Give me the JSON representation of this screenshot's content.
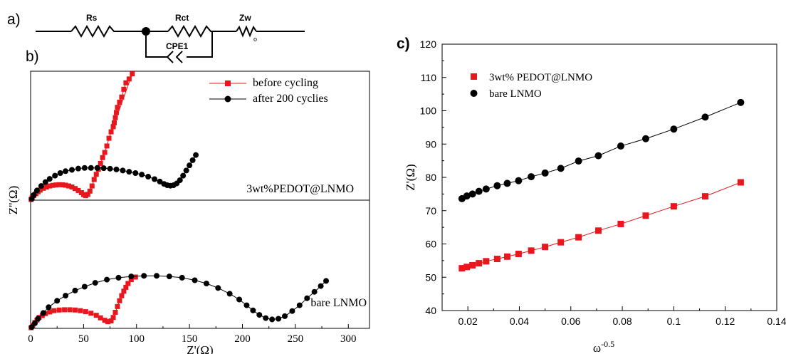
{
  "panel_labels": {
    "a": "a)",
    "b": "b)",
    "c": "c)"
  },
  "circuit": {
    "labels": [
      "Rs",
      "Rct",
      "Zw",
      "CPE1"
    ]
  },
  "colors": {
    "series_red": "#e8161d",
    "series_black": "#000000",
    "line_red": "#e8161d",
    "line_black": "#000000"
  },
  "chart_data": [
    {
      "id": "b",
      "type": "scatter",
      "subtype": "nyquist-line-marker",
      "xlabel": "Z'(Ω)",
      "ylabel": "Z''(Ω)",
      "xlim": [
        0,
        320
      ],
      "xticks": [
        0,
        50,
        100,
        150,
        200,
        250,
        300
      ],
      "legend_position": "top-right",
      "legend": [
        "before cycling",
        "after 200 cyclies"
      ],
      "subpanels": [
        {
          "id": "b-top",
          "annotation": "3wt%PEDOT@LNMO",
          "ylim": [
            0,
            100
          ],
          "series": [
            {
              "name": "before cycling",
              "marker": "square",
              "color": "#e8161d",
              "points": [
                [
                  0.5,
                  0.5
                ],
                [
                  1.5,
                  2
                ],
                [
                  3,
                  3.5
                ],
                [
                  5,
                  5
                ],
                [
                  7,
                  6.5
                ],
                [
                  9,
                  7.8
                ],
                [
                  12,
                  9.2
                ],
                [
                  15,
                  10.2
                ],
                [
                  18,
                  11
                ],
                [
                  21,
                  11.5
                ],
                [
                  24,
                  11.8
                ],
                [
                  27,
                  12
                ],
                [
                  30,
                  11.9
                ],
                [
                  33,
                  11.6
                ],
                [
                  36,
                  11
                ],
                [
                  39,
                  10.2
                ],
                [
                  42,
                  9
                ],
                [
                  45,
                  7.5
                ],
                [
                  48,
                  5.8
                ],
                [
                  50,
                  4.3
                ],
                [
                  52,
                  3.5
                ],
                [
                  54,
                  4.5
                ],
                [
                  56,
                  7
                ],
                [
                  58,
                  11
                ],
                [
                  60,
                  16
                ],
                [
                  62,
                  20
                ],
                [
                  64,
                  24
                ],
                [
                  66,
                  28.5
                ],
                [
                  68,
                  33
                ],
                [
                  70,
                  37
                ],
                [
                  72,
                  42
                ],
                [
                  74,
                  48
                ],
                [
                  76,
                  53
                ],
                [
                  78,
                  57
                ],
                [
                  79,
                  60
                ],
                [
                  80,
                  64
                ],
                [
                  81,
                  68
                ],
                [
                  82,
                  72
                ],
                [
                  84,
                  76
                ],
                [
                  86,
                  80
                ],
                [
                  88,
                  86
                ],
                [
                  90,
                  91
                ],
                [
                  93,
                  94
                ],
                [
                  96,
                  98
                ],
                [
                  78,
                  57
                ]
              ]
            },
            {
              "name": "after 200 cyclies",
              "marker": "circle",
              "color": "#000000",
              "points": [
                [
                  1,
                  1
                ],
                [
                  3,
                  4
                ],
                [
                  6,
                  7.5
                ],
                [
                  10,
                  11
                ],
                [
                  14,
                  14
                ],
                [
                  18,
                  16.5
                ],
                [
                  23,
                  19
                ],
                [
                  28,
                  21
                ],
                [
                  33,
                  22.5
                ],
                [
                  39,
                  23.5
                ],
                [
                  45,
                  24.5
                ],
                [
                  51,
                  25
                ],
                [
                  57,
                  25
                ],
                [
                  63,
                  25
                ],
                [
                  69,
                  24.8
                ],
                [
                  75,
                  24.4
                ],
                [
                  81,
                  23.8
                ],
                [
                  87,
                  23
                ],
                [
                  93,
                  22
                ],
                [
                  99,
                  21
                ],
                [
                  105,
                  19.8
                ],
                [
                  111,
                  18.2
                ],
                [
                  117,
                  16.3
                ],
                [
                  122,
                  14.4
                ],
                [
                  126,
                  12.6
                ],
                [
                  129,
                  11.6
                ],
                [
                  132,
                  11.2
                ],
                [
                  135,
                  11.6
                ],
                [
                  138,
                  13
                ],
                [
                  141,
                  15.5
                ],
                [
                  144,
                  19
                ],
                [
                  147,
                  23
                ],
                [
                  150,
                  27
                ],
                [
                  153,
                  31
                ],
                [
                  156,
                  35
                ]
              ]
            }
          ]
        },
        {
          "id": "b-bottom",
          "annotation": "bare LNMO",
          "ylim": [
            0,
            100
          ],
          "series": [
            {
              "name": "before cycling",
              "marker": "square",
              "color": "#e8161d",
              "points": [
                [
                  0.5,
                  0.5
                ],
                [
                  2,
                  2.5
                ],
                [
                  4,
                  4.5
                ],
                [
                  6,
                  6.5
                ],
                [
                  8,
                  8.5
                ],
                [
                  11,
                  10
                ],
                [
                  14,
                  11.5
                ],
                [
                  18,
                  12.8
                ],
                [
                  22,
                  13.8
                ],
                [
                  27,
                  14.3
                ],
                [
                  32,
                  14.5
                ],
                [
                  37,
                  14.5
                ],
                [
                  42,
                  14.3
                ],
                [
                  47,
                  13.8
                ],
                [
                  52,
                  13
                ],
                [
                  57,
                  11.8
                ],
                [
                  62,
                  10.2
                ],
                [
                  66,
                  8.2
                ],
                [
                  70,
                  6.3
                ],
                [
                  73,
                  5.2
                ],
                [
                  76,
                  5.8
                ],
                [
                  78,
                  8.5
                ],
                [
                  80,
                  12.5
                ],
                [
                  82,
                  17
                ],
                [
                  84,
                  21.5
                ],
                [
                  86,
                  25.5
                ],
                [
                  88,
                  29
                ],
                [
                  90,
                  32
                ],
                [
                  92,
                  35
                ],
                [
                  95,
                  38
                ],
                [
                  99,
                  40
                ]
              ]
            },
            {
              "name": "after 200 cyclies",
              "marker": "circle",
              "color": "#000000",
              "points": [
                [
                  1,
                  1
                ],
                [
                  4,
                  4
                ],
                [
                  7,
                  7.5
                ],
                [
                  12,
                  12
                ],
                [
                  17,
                  16.5
                ],
                [
                  25,
                  21.5
                ],
                [
                  33,
                  25.5
                ],
                [
                  42,
                  29.5
                ],
                [
                  51,
                  32.5
                ],
                [
                  61,
                  35.5
                ],
                [
                  72,
                  38
                ],
                [
                  83,
                  39.5
                ],
                [
                  95,
                  40.5
                ],
                [
                  107,
                  41
                ],
                [
                  119,
                  41
                ],
                [
                  131,
                  40.5
                ],
                [
                  143,
                  39.5
                ],
                [
                  155,
                  37.5
                ],
                [
                  166,
                  35
                ],
                [
                  177,
                  31.5
                ],
                [
                  188,
                  27
                ],
                [
                  197,
                  22.5
                ],
                [
                  204,
                  18
                ],
                [
                  210,
                  14
                ],
                [
                  216,
                  10.5
                ],
                [
                  222,
                  8
                ],
                [
                  228,
                  7
                ],
                [
                  234,
                  7.5
                ],
                [
                  240,
                  9.5
                ],
                [
                  247,
                  13.5
                ],
                [
                  254,
                  18
                ],
                [
                  261,
                  23.5
                ],
                [
                  268,
                  28.5
                ],
                [
                  274,
                  33
                ],
                [
                  279,
                  37
                ]
              ]
            }
          ]
        }
      ]
    },
    {
      "id": "c",
      "type": "scatter",
      "subtype": "scatter-with-linear-fit",
      "xlabel": "ω-0.5",
      "xlabel_base": "ω",
      "xlabel_sup": "-0.5",
      "ylabel": "Z'(Ω)",
      "xlim": [
        0.01,
        0.14
      ],
      "ylim": [
        40,
        120
      ],
      "xticks": [
        0.02,
        0.04,
        0.06,
        0.08,
        0.1,
        0.12,
        0.14
      ],
      "yticks": [
        40,
        50,
        60,
        70,
        80,
        90,
        100,
        110,
        120
      ],
      "legend_position": "top-left",
      "legend": [
        "3wt% PEDOT@LNMO",
        "bare LNMO"
      ],
      "series": [
        {
          "name": "3wt% PEDOT@LNMO",
          "marker": "square",
          "color": "#e8161d",
          "x": [
            0.0177,
            0.0196,
            0.0218,
            0.0243,
            0.0271,
            0.0314,
            0.0353,
            0.0397,
            0.0446,
            0.05,
            0.0561,
            0.063,
            0.0707,
            0.0794,
            0.0891,
            0.1,
            0.1122,
            0.126
          ],
          "y": [
            52.7,
            53.1,
            53.6,
            54.2,
            54.8,
            55.5,
            56.2,
            57.0,
            58.0,
            59.1,
            60.5,
            62.0,
            64.0,
            66.0,
            68.5,
            71.3,
            74.3,
            78.5
          ]
        },
        {
          "name": "bare LNMO",
          "marker": "circle",
          "color": "#000000",
          "x": [
            0.0177,
            0.0196,
            0.0218,
            0.0243,
            0.0271,
            0.0314,
            0.0353,
            0.0397,
            0.0446,
            0.05,
            0.0561,
            0.063,
            0.0707,
            0.0794,
            0.0891,
            0.1,
            0.1122,
            0.126
          ],
          "y": [
            73.6,
            74.4,
            75.0,
            75.8,
            76.5,
            77.5,
            78.2,
            79.0,
            80.2,
            81.3,
            82.7,
            84.9,
            86.5,
            89.4,
            91.6,
            94.5,
            98.1,
            102.5
          ]
        }
      ]
    }
  ]
}
